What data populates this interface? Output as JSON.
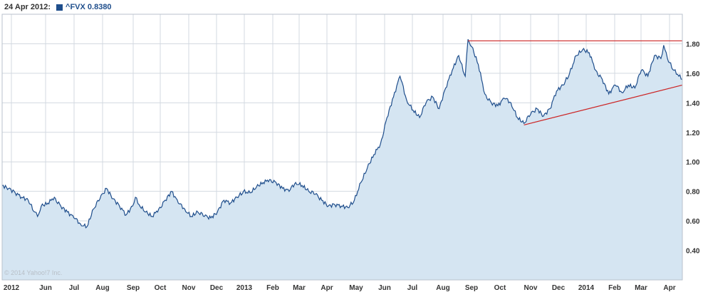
{
  "legend": {
    "date": "24 Apr 2012:",
    "series_label": "^FVX 0.8380"
  },
  "watermark": "© 2014 Yahoo!7 Inc.",
  "colors": {
    "line": "#1f4e8c",
    "fill": "#d5e5f2",
    "grid": "#d3d9e0",
    "trend": "#cc2222",
    "axis_text": "#333333"
  },
  "chart_data": {
    "type": "area",
    "title": "",
    "xlabel": "",
    "ylabel": "",
    "ylim": [
      0.2,
      2.0
    ],
    "y_ticks": [
      "0.40",
      "0.60",
      "0.80",
      "1.00",
      "1.20",
      "1.40",
      "1.60",
      "1.80"
    ],
    "y_axis_side": "right",
    "grid": true,
    "x_tick_labels": [
      "2012",
      "Jun",
      "Jul",
      "Aug",
      "Sep",
      "Oct",
      "Nov",
      "Dec",
      "2013",
      "Feb",
      "Mar",
      "Apr",
      "May",
      "Jun",
      "Jul",
      "Aug",
      "Sep",
      "Oct",
      "Nov",
      "Dec",
      "2014",
      "Feb",
      "Mar",
      "Apr"
    ],
    "x_tick_bold": [
      "2012",
      "2013",
      "2014"
    ],
    "series": [
      {
        "name": "^FVX",
        "x": [
          "2012-04-24",
          "2012-05-01",
          "2012-05-08",
          "2012-05-15",
          "2012-05-22",
          "2012-05-29",
          "2012-06-01",
          "2012-06-05",
          "2012-06-12",
          "2012-06-19",
          "2012-06-26",
          "2012-07-03",
          "2012-07-10",
          "2012-07-17",
          "2012-07-24",
          "2012-07-31",
          "2012-08-07",
          "2012-08-14",
          "2012-08-21",
          "2012-08-28",
          "2012-09-04",
          "2012-09-11",
          "2012-09-14",
          "2012-09-18",
          "2012-09-25",
          "2012-10-02",
          "2012-10-09",
          "2012-10-16",
          "2012-10-23",
          "2012-10-30",
          "2012-11-06",
          "2012-11-13",
          "2012-11-20",
          "2012-11-27",
          "2012-12-04",
          "2012-12-11",
          "2012-12-18",
          "2012-12-25",
          "2013-01-01",
          "2013-01-08",
          "2013-01-15",
          "2013-01-22",
          "2013-01-29",
          "2013-02-05",
          "2013-02-12",
          "2013-02-19",
          "2013-02-26",
          "2013-03-05",
          "2013-03-12",
          "2013-03-19",
          "2013-03-26",
          "2013-04-02",
          "2013-04-09",
          "2013-04-16",
          "2013-04-23",
          "2013-04-30",
          "2013-05-07",
          "2013-05-14",
          "2013-05-21",
          "2013-05-28",
          "2013-06-04",
          "2013-06-11",
          "2013-06-18",
          "2013-06-25",
          "2013-07-02",
          "2013-07-09",
          "2013-07-16",
          "2013-07-23",
          "2013-07-30",
          "2013-08-06",
          "2013-08-13",
          "2013-08-20",
          "2013-08-27",
          "2013-09-03",
          "2013-09-06",
          "2013-09-10",
          "2013-09-17",
          "2013-09-24",
          "2013-10-01",
          "2013-10-08",
          "2013-10-15",
          "2013-10-22",
          "2013-10-29",
          "2013-11-05",
          "2013-11-12",
          "2013-11-19",
          "2013-11-26",
          "2013-12-03",
          "2013-12-10",
          "2013-12-17",
          "2013-12-24",
          "2013-12-31",
          "2014-01-07",
          "2014-01-14",
          "2014-01-21",
          "2014-01-28",
          "2014-02-04",
          "2014-02-11",
          "2014-02-18",
          "2014-02-25",
          "2014-03-04",
          "2014-03-11",
          "2014-03-18",
          "2014-03-25",
          "2014-04-01",
          "2014-04-04",
          "2014-04-08",
          "2014-04-15",
          "2014-04-24"
        ],
        "values": [
          0.84,
          0.82,
          0.79,
          0.76,
          0.74,
          0.66,
          0.63,
          0.7,
          0.72,
          0.76,
          0.7,
          0.66,
          0.62,
          0.58,
          0.56,
          0.68,
          0.75,
          0.82,
          0.75,
          0.7,
          0.64,
          0.7,
          0.76,
          0.71,
          0.66,
          0.63,
          0.68,
          0.74,
          0.8,
          0.72,
          0.68,
          0.63,
          0.66,
          0.63,
          0.62,
          0.66,
          0.74,
          0.72,
          0.76,
          0.8,
          0.79,
          0.83,
          0.86,
          0.88,
          0.86,
          0.82,
          0.8,
          0.86,
          0.84,
          0.8,
          0.78,
          0.74,
          0.7,
          0.71,
          0.7,
          0.69,
          0.74,
          0.86,
          0.96,
          1.05,
          1.12,
          1.3,
          1.44,
          1.58,
          1.42,
          1.35,
          1.3,
          1.4,
          1.44,
          1.36,
          1.5,
          1.62,
          1.72,
          1.58,
          1.83,
          1.78,
          1.66,
          1.46,
          1.4,
          1.38,
          1.43,
          1.4,
          1.3,
          1.26,
          1.32,
          1.36,
          1.31,
          1.36,
          1.48,
          1.52,
          1.6,
          1.72,
          1.76,
          1.74,
          1.62,
          1.56,
          1.46,
          1.52,
          1.47,
          1.52,
          1.5,
          1.62,
          1.58,
          1.72,
          1.7,
          1.79,
          1.7,
          1.62,
          1.56
        ]
      }
    ],
    "trendlines": [
      {
        "x": [
          "2013-09-06",
          "2014-04-24"
        ],
        "y": [
          1.82,
          1.82
        ]
      },
      {
        "x": [
          "2013-11-05",
          "2014-04-24"
        ],
        "y": [
          1.25,
          1.52
        ]
      }
    ]
  }
}
